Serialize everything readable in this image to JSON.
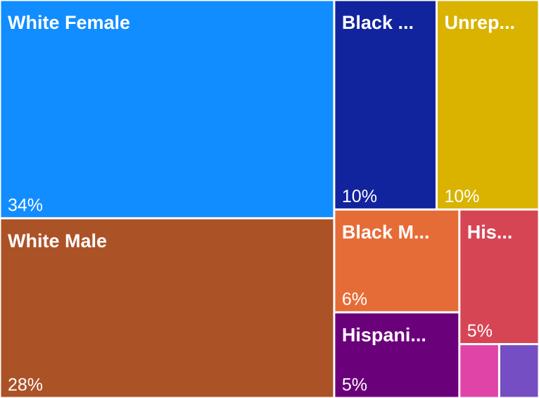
{
  "chart_data": {
    "type": "treemap",
    "categories": [
      "White Female",
      "Black ...",
      "Unrep...",
      "White Male",
      "Black M...",
      "His...",
      "Hispani...",
      null,
      null
    ],
    "values": [
      34,
      10,
      10,
      28,
      6,
      5,
      5,
      1,
      1
    ],
    "value_labels": [
      "34%",
      "10%",
      "10%",
      "28%",
      "6%",
      "5%",
      "5%",
      null,
      null
    ],
    "colors": [
      "#118DFF",
      "#12239E",
      "#D9B300",
      "#AC5227",
      "#E66C37",
      "#D64554",
      "#6B007B",
      "#E044A7",
      "#744EC2"
    ]
  }
}
